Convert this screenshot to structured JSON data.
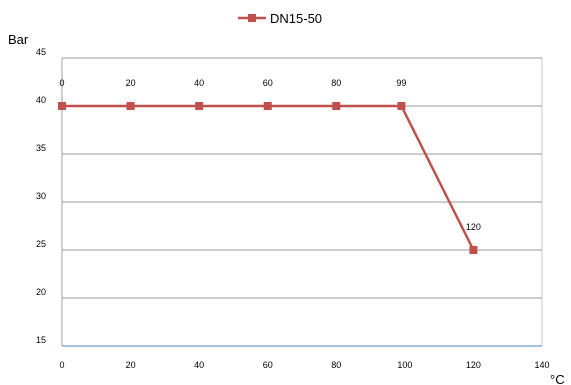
{
  "chart_data": {
    "type": "line",
    "ylabel": "Bar",
    "xlabel": "°C",
    "xlim": [
      0,
      140
    ],
    "ylim": [
      15,
      45
    ],
    "x_ticks": [
      0,
      20,
      40,
      60,
      80,
      100,
      120,
      140
    ],
    "y_ticks": [
      15,
      20,
      25,
      30,
      35,
      40,
      45
    ],
    "grid": "horizontal",
    "legend_position": "top",
    "series": [
      {
        "name": "DN15-50",
        "color": "#c0504d",
        "marker": "square",
        "x": [
          0,
          20,
          40,
          60,
          80,
          99,
          120
        ],
        "y": [
          40,
          40,
          40,
          40,
          40,
          40,
          25
        ],
        "labels": [
          "0",
          "20",
          "40",
          "60",
          "80",
          "99",
          "120"
        ]
      }
    ]
  }
}
